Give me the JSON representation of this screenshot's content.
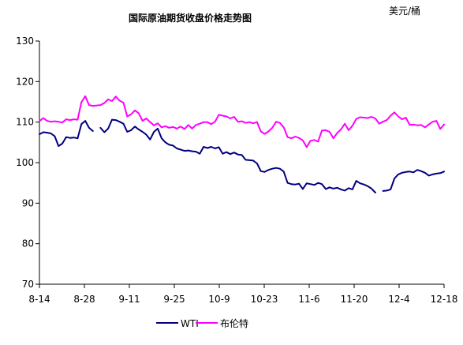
{
  "chart_data": {
    "type": "line",
    "title": "国际原油期货收盘价格走势图",
    "unit_label": "美元/桶",
    "xlabel": "",
    "ylabel": "",
    "ylim": [
      70,
      130
    ],
    "yticks": [
      "70",
      "80",
      "90",
      "100",
      "110",
      "120",
      "130"
    ],
    "xticks": [
      "8-14",
      "8-28",
      "9-11",
      "9-25",
      "10-9",
      "10-23",
      "11-6",
      "11-20",
      "12-4",
      "12-18"
    ],
    "grid": false,
    "legend_position": "bottom",
    "series": [
      {
        "name": "WTI",
        "color": "#000080",
        "values": [
          [
            0,
            107
          ],
          [
            1,
            107.5
          ],
          [
            2,
            107.4
          ],
          [
            3,
            107.2
          ],
          [
            4,
            106.5
          ],
          [
            5,
            104.1
          ],
          [
            6,
            104.7
          ],
          [
            7,
            106.3
          ],
          [
            8,
            106.1
          ],
          [
            9,
            106.2
          ],
          [
            10,
            106.0
          ],
          [
            11,
            109.5
          ],
          [
            12,
            110.3
          ],
          [
            13,
            108.6
          ],
          [
            14,
            107.8
          ],
          null,
          [
            16,
            108.6
          ],
          [
            17,
            107.5
          ],
          [
            18,
            108.4
          ],
          [
            19,
            110.6
          ],
          [
            20,
            110.5
          ],
          [
            21,
            110.1
          ],
          [
            22,
            109.6
          ],
          [
            23,
            107.6
          ],
          [
            24,
            108.0
          ],
          [
            25,
            108.9
          ],
          [
            26,
            108.2
          ],
          [
            27,
            107.6
          ],
          [
            28,
            106.9
          ],
          [
            29,
            105.7
          ],
          [
            30,
            107.6
          ],
          [
            31,
            108.4
          ],
          [
            32,
            106.0
          ],
          [
            33,
            105.0
          ],
          [
            34,
            104.4
          ],
          [
            35,
            104.2
          ],
          [
            36,
            103.5
          ],
          [
            37,
            103.2
          ],
          [
            38,
            102.9
          ],
          [
            39,
            103.0
          ],
          [
            40,
            102.8
          ],
          [
            41,
            102.7
          ],
          [
            42,
            102.2
          ],
          [
            43,
            103.9
          ],
          [
            44,
            103.6
          ],
          [
            45,
            103.9
          ],
          [
            46,
            103.5
          ],
          [
            47,
            103.8
          ],
          [
            48,
            102.2
          ],
          [
            49,
            102.6
          ],
          [
            50,
            102.1
          ],
          [
            51,
            102.5
          ],
          [
            52,
            102.0
          ],
          [
            53,
            101.9
          ],
          [
            54,
            100.7
          ],
          [
            55,
            100.6
          ],
          [
            56,
            100.5
          ],
          [
            57,
            99.8
          ],
          [
            58,
            97.9
          ],
          [
            59,
            97.7
          ],
          [
            60,
            98.2
          ],
          [
            61,
            98.5
          ],
          [
            62,
            98.7
          ],
          [
            63,
            98.5
          ],
          [
            64,
            97.8
          ],
          [
            65,
            95.0
          ],
          [
            66,
            94.7
          ],
          [
            67,
            94.6
          ],
          [
            68,
            94.8
          ],
          [
            69,
            93.5
          ],
          [
            70,
            94.9
          ],
          [
            71,
            94.7
          ],
          [
            72,
            94.5
          ],
          [
            73,
            95.0
          ],
          [
            74,
            94.7
          ],
          [
            75,
            93.5
          ],
          [
            76,
            93.9
          ],
          [
            77,
            93.6
          ],
          [
            78,
            93.8
          ],
          [
            79,
            93.4
          ],
          [
            80,
            93.1
          ],
          [
            81,
            93.7
          ],
          [
            82,
            93.4
          ],
          [
            83,
            95.5
          ],
          [
            84,
            94.9
          ],
          [
            85,
            94.6
          ],
          [
            86,
            94.2
          ],
          [
            87,
            93.6
          ],
          [
            88,
            92.6
          ],
          null,
          [
            90,
            93.0
          ],
          [
            91,
            93.1
          ],
          [
            92,
            93.4
          ],
          [
            93,
            96.1
          ],
          [
            94,
            97.1
          ],
          [
            95,
            97.5
          ],
          [
            96,
            97.7
          ],
          [
            97,
            97.8
          ],
          [
            98,
            97.6
          ],
          [
            99,
            98.2
          ],
          [
            100,
            97.9
          ],
          [
            101,
            97.5
          ],
          [
            102,
            96.8
          ],
          [
            103,
            97.1
          ],
          [
            104,
            97.3
          ],
          [
            105,
            97.4
          ],
          [
            106,
            97.8
          ]
        ]
      },
      {
        "name": "布伦特",
        "color": "#ff00ff",
        "values": [
          [
            0,
            110.2
          ],
          [
            1,
            111
          ],
          [
            2,
            110.3
          ],
          [
            3,
            110.1
          ],
          [
            4,
            110.2
          ],
          [
            5,
            110.1
          ],
          [
            6,
            109.9
          ],
          [
            7,
            110.7
          ],
          [
            8,
            110.5
          ],
          [
            9,
            110.7
          ],
          [
            10,
            110.6
          ],
          [
            11,
            114.9
          ],
          [
            12,
            116.4
          ],
          [
            13,
            114.2
          ],
          [
            14,
            114
          ],
          [
            15,
            114.1
          ],
          [
            16,
            114.2
          ],
          [
            17,
            114.7
          ],
          [
            18,
            115.6
          ],
          [
            19,
            115.2
          ],
          [
            20,
            116.3
          ],
          [
            21,
            115.3
          ],
          [
            22,
            114.8
          ],
          [
            23,
            111.4
          ],
          [
            24,
            111.9
          ],
          [
            25,
            112.9
          ],
          [
            26,
            112.2
          ],
          [
            27,
            110.3
          ],
          [
            28,
            110.9
          ],
          [
            29,
            110.0
          ],
          [
            30,
            109.2
          ],
          [
            31,
            109.7
          ],
          [
            32,
            108.7
          ],
          [
            33,
            109.0
          ],
          [
            34,
            108.6
          ],
          [
            35,
            108.8
          ],
          [
            36,
            108.4
          ],
          [
            37,
            108.9
          ],
          [
            38,
            108.3
          ],
          [
            39,
            109.3
          ],
          [
            40,
            108.4
          ],
          [
            41,
            109.3
          ],
          [
            42,
            109.6
          ],
          [
            43,
            110.0
          ],
          [
            44,
            110.0
          ],
          [
            45,
            109.5
          ],
          [
            46,
            110.1
          ],
          [
            47,
            111.8
          ],
          [
            48,
            111.6
          ],
          [
            49,
            111.4
          ],
          [
            50,
            110.9
          ],
          [
            51,
            111.3
          ],
          [
            52,
            110.1
          ],
          [
            53,
            110.2
          ],
          [
            54,
            109.8
          ],
          [
            55,
            110.0
          ],
          [
            56,
            109.7
          ],
          [
            57,
            110.0
          ],
          [
            58,
            107.7
          ],
          [
            59,
            107.1
          ],
          [
            60,
            107.7
          ],
          [
            61,
            108.6
          ],
          [
            62,
            110.1
          ],
          [
            63,
            109.8
          ],
          [
            64,
            108.7
          ],
          [
            65,
            106.3
          ],
          [
            66,
            106.0
          ],
          [
            67,
            106.4
          ],
          [
            68,
            106.1
          ],
          [
            69,
            105.5
          ],
          [
            70,
            103.8
          ],
          [
            71,
            105.4
          ],
          [
            72,
            105.6
          ],
          [
            73,
            105.2
          ],
          [
            74,
            107.9
          ],
          [
            75,
            108.0
          ],
          [
            76,
            107.6
          ],
          [
            77,
            106.0
          ],
          [
            78,
            107.3
          ],
          [
            79,
            108.2
          ],
          [
            80,
            109.6
          ],
          [
            81,
            108.0
          ],
          [
            82,
            109.1
          ],
          [
            83,
            110.8
          ],
          [
            84,
            111.2
          ],
          [
            85,
            111.1
          ],
          [
            86,
            111.0
          ],
          [
            87,
            111.3
          ],
          [
            88,
            110.9
          ],
          [
            89,
            109.6
          ],
          [
            90,
            110.1
          ],
          [
            91,
            110.5
          ],
          [
            92,
            111.6
          ],
          [
            93,
            112.4
          ],
          [
            94,
            111.4
          ],
          [
            95,
            110.7
          ],
          [
            96,
            111.1
          ],
          [
            97,
            109.3
          ],
          [
            98,
            109.4
          ],
          [
            99,
            109.2
          ],
          [
            100,
            109.3
          ],
          [
            101,
            108.7
          ],
          [
            102,
            109.4
          ],
          [
            103,
            110.1
          ],
          [
            104,
            110.3
          ],
          [
            105,
            108.3
          ],
          [
            106,
            109.4
          ]
        ]
      }
    ]
  }
}
